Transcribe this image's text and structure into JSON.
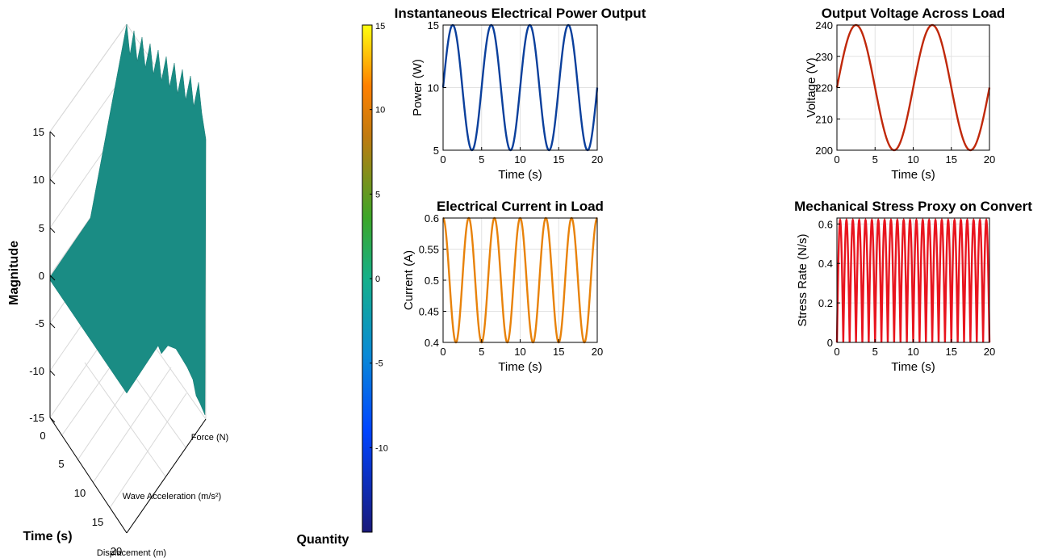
{
  "surface3d": {
    "zlabel": "Magnitude",
    "time_label": "Time (s)",
    "quantity_label": "Quantity",
    "z_ticks": [
      "-15",
      "-10",
      "-5",
      "0",
      "5",
      "10",
      "15"
    ],
    "time_ticks": [
      "0",
      "5",
      "10",
      "15",
      "20"
    ],
    "quantity_ticks": [
      "Displacement (m)",
      "Wave Acceleration (m/s²)",
      "Force (N)"
    ],
    "surface_color": "#1a8c84",
    "colorbar": {
      "ticks": [
        "-10",
        "-5",
        "0",
        "5",
        "10",
        "15"
      ],
      "range": [
        -15,
        15
      ]
    }
  },
  "chart_data": [
    {
      "type": "line",
      "title": "Instantaneous Electrical Power Output",
      "xlabel": "Time (s)",
      "ylabel": "Power (W)",
      "xlim": [
        0,
        20
      ],
      "ylim": [
        5,
        15
      ],
      "x_ticks": [
        "0",
        "5",
        "10",
        "15",
        "20"
      ],
      "y_ticks": [
        "5",
        "10",
        "15"
      ],
      "color": "#0a3f9c",
      "function": "10 + 5*sin(2*pi*0.2*t)"
    },
    {
      "type": "line",
      "title": "Output Voltage Across Load",
      "xlabel": "Time (s)",
      "ylabel": "Voltage (V)",
      "xlim": [
        0,
        20
      ],
      "ylim": [
        200,
        240
      ],
      "x_ticks": [
        "0",
        "5",
        "10",
        "15",
        "20"
      ],
      "y_ticks": [
        "200",
        "210",
        "220",
        "230",
        "240"
      ],
      "color": "#c0280a",
      "function": "220 + 20*sin(2*pi*0.1*t)"
    },
    {
      "type": "line",
      "title": "Electrical Current in Load",
      "xlabel": "Time (s)",
      "ylabel": "Current (A)",
      "xlim": [
        0,
        20
      ],
      "ylim": [
        0.4,
        0.6
      ],
      "x_ticks": [
        "0",
        "5",
        "10",
        "15",
        "20"
      ],
      "y_ticks": [
        "0.4",
        "0.45",
        "0.5",
        "0.55",
        "0.6"
      ],
      "color": "#e8820a",
      "function": "0.5 + 0.1*cos(2*pi*0.3*t)"
    },
    {
      "type": "line",
      "title": "Mechanical Stress Proxy on Convert",
      "xlabel": "Time (s)",
      "ylabel": "Stress Rate (N/s)",
      "xlim": [
        0,
        20
      ],
      "ylim": [
        0,
        0.63
      ],
      "x_ticks": [
        "0",
        "5",
        "10",
        "15",
        "20"
      ],
      "y_ticks": [
        "0",
        "0.2",
        "0.4",
        "0.6"
      ],
      "color": "#e8141e",
      "function": "0.62*|sin(2*pi*0.6*t)|"
    }
  ]
}
